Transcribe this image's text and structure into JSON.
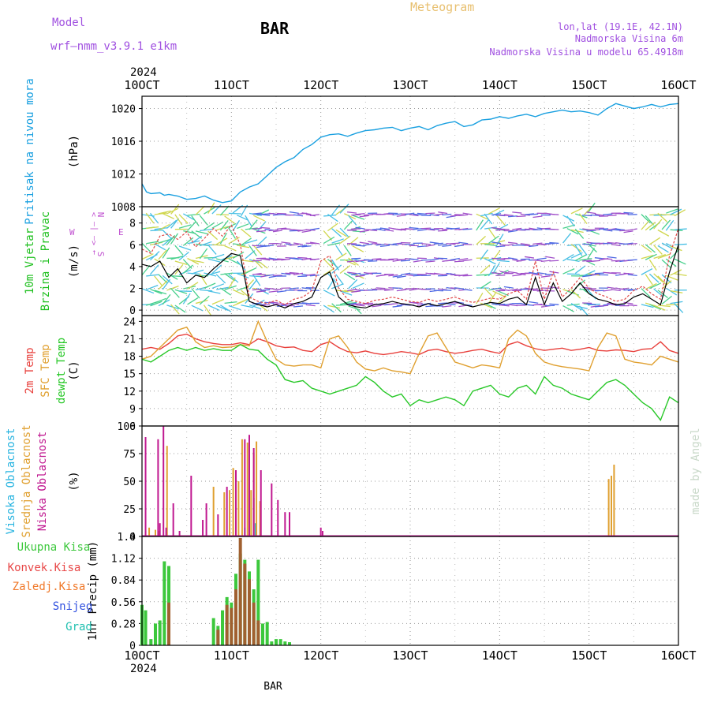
{
  "header": {
    "model_label": "Model",
    "model_name": "wrf–nmm_v3.9.1  e1km",
    "station": "BAR",
    "title": "Meteogram",
    "coords": "lon,lat (19.1E, 42.1N)",
    "elevation": "Nadmorska Visina 6m",
    "model_elevation": "Nadmorska Visina u modelu 65.4918m",
    "credit": "made by Angel",
    "footer": "BAR"
  },
  "colors": {
    "pressure": "#1aa0e0",
    "temp2m": "#e8403c",
    "sfc_temp": "#e0a030",
    "dewpoint": "#28c828",
    "high_cloud": "#28b4e0",
    "mid_cloud": "#e0a030",
    "low_cloud": "#c01890",
    "total_precip": "#3cc83c",
    "conv_precip": "#e84848",
    "freezing_precip": "#f07828",
    "snow": "#3050e0",
    "hail": "#20c0b0",
    "wind_label": "#20c020",
    "wind_dir": "#c050d0",
    "title": "#e8c070",
    "info": "#a050e0",
    "credit": "#c8d8c8"
  },
  "axes": {
    "year": "2024",
    "x_ticks": [
      "10OCT",
      "11OCT",
      "12OCT",
      "13OCT",
      "14OCT",
      "15OCT",
      "16OCT"
    ]
  },
  "chart_data": [
    {
      "id": "pressure",
      "type": "line",
      "ylabel_lines": [
        "Pritisak na nivou mora"
      ],
      "unit": "(hPa)",
      "ylim": [
        1008,
        1021.5
      ],
      "yticks": [
        1008,
        1012,
        1016,
        1020
      ],
      "grid": true,
      "x": [
        0,
        0.05,
        0.1,
        0.2,
        0.25,
        0.3,
        0.4,
        0.5,
        0.6,
        0.7,
        0.8,
        0.9,
        1.0,
        1.1,
        1.2,
        1.3,
        1.4,
        1.5,
        1.6,
        1.7,
        1.8,
        1.9,
        2.0,
        2.1,
        2.2,
        2.3,
        2.4,
        2.5,
        2.6,
        2.7,
        2.8,
        2.9,
        3.0,
        3.1,
        3.2,
        3.3,
        3.4,
        3.5,
        3.6,
        3.7,
        3.8,
        3.9,
        4.0,
        4.1,
        4.2,
        4.3,
        4.4,
        4.5,
        4.6,
        4.7,
        4.8,
        4.9,
        5.0,
        5.1,
        5.2,
        5.3,
        5.4,
        5.5,
        5.6,
        5.7,
        5.8,
        5.9,
        6.0
      ],
      "series": [
        {
          "values": [
            1010.8,
            1009.8,
            1009.6,
            1009.7,
            1009.4,
            1009.5,
            1009.3,
            1008.9,
            1009.0,
            1009.3,
            1008.8,
            1008.5,
            1008.7,
            1009.8,
            1010.4,
            1010.8,
            1011.8,
            1012.8,
            1013.5,
            1014.0,
            1015.0,
            1015.6,
            1016.5,
            1016.8,
            1016.9,
            1016.6,
            1017.0,
            1017.3,
            1017.4,
            1017.6,
            1017.7,
            1017.3,
            1017.6,
            1017.8,
            1017.4,
            1017.9,
            1018.2,
            1018.4,
            1017.8,
            1018.0,
            1018.6,
            1018.7,
            1019.0,
            1018.8,
            1019.1,
            1019.3,
            1019.0,
            1019.4,
            1019.6,
            1019.8,
            1019.6,
            1019.7,
            1019.5,
            1019.2,
            1020.0,
            1020.6,
            1020.3,
            1020.0,
            1020.2,
            1020.5,
            1020.2,
            1020.5,
            1020.6
          ]
        }
      ]
    },
    {
      "id": "wind",
      "type": "line",
      "ylabel_lines": [
        "10m Vjetar",
        "Brzina i Pravac"
      ],
      "unit": "(m/s)",
      "direction_key": [
        "N",
        "→ <– |– >",
        "W",
        "E",
        "S"
      ],
      "ylim": [
        -0.5,
        9.5
      ],
      "yticks": [
        0,
        2,
        4,
        6,
        8
      ],
      "grid": true,
      "x": [
        0,
        0.1,
        0.2,
        0.3,
        0.4,
        0.5,
        0.6,
        0.7,
        0.8,
        0.9,
        1.0,
        1.1,
        1.2,
        1.3,
        1.4,
        1.5,
        1.6,
        1.7,
        1.8,
        1.9,
        2.0,
        2.1,
        2.2,
        2.3,
        2.4,
        2.5,
        2.6,
        2.7,
        2.8,
        2.9,
        3.0,
        3.1,
        3.2,
        3.3,
        3.4,
        3.5,
        3.6,
        3.7,
        3.8,
        3.9,
        4.0,
        4.1,
        4.2,
        4.3,
        4.4,
        4.5,
        4.6,
        4.7,
        4.8,
        4.9,
        5.0,
        5.1,
        5.2,
        5.3,
        5.4,
        5.5,
        5.6,
        5.7,
        5.8,
        5.9,
        6.0
      ],
      "series": [
        {
          "values": [
            4.2,
            4.0,
            4.5,
            3.0,
            3.8,
            2.5,
            3.2,
            3.0,
            3.8,
            4.5,
            5.2,
            5.0,
            0.8,
            0.5,
            0.3,
            0.5,
            0.2,
            0.6,
            0.8,
            1.2,
            3.0,
            3.5,
            1.2,
            0.5,
            0.3,
            0.2,
            0.5,
            0.6,
            0.8,
            0.6,
            0.5,
            0.3,
            0.6,
            0.4,
            0.6,
            0.8,
            0.5,
            0.3,
            0.5,
            0.7,
            0.6,
            1.0,
            1.2,
            0.5,
            3.0,
            0.5,
            2.5,
            0.8,
            1.5,
            2.5,
            1.5,
            1.0,
            0.8,
            0.5,
            0.6,
            1.2,
            1.5,
            1.0,
            0.5,
            3.5,
            6.0
          ]
        },
        {
          "values": [
            5.6,
            5.2,
            6.8,
            7.0,
            6.5,
            7.2,
            5.8,
            6.6,
            7.5,
            6.8,
            7.8,
            6.0,
            1.2,
            0.8,
            0.6,
            0.9,
            0.5,
            1.0,
            1.2,
            1.8,
            4.5,
            5.0,
            2.0,
            1.0,
            0.8,
            0.6,
            0.9,
            1.0,
            1.2,
            1.0,
            0.8,
            0.7,
            1.0,
            0.8,
            1.0,
            1.2,
            0.9,
            0.7,
            0.9,
            1.1,
            1.0,
            1.5,
            1.8,
            1.0,
            4.5,
            1.0,
            3.5,
            1.2,
            2.0,
            3.0,
            2.0,
            1.5,
            1.2,
            0.8,
            1.0,
            1.8,
            2.2,
            1.5,
            1.0,
            5.0,
            7.5
          ]
        }
      ]
    },
    {
      "id": "temperature",
      "type": "line",
      "ylabel_lines": [
        "2m Temp",
        "SFC Temp",
        "dewpt Temp"
      ],
      "unit": "(C)",
      "ylim": [
        6,
        25
      ],
      "yticks": [
        6,
        9,
        12,
        15,
        18,
        21,
        24
      ],
      "grid": true,
      "x": [
        0,
        0.1,
        0.2,
        0.3,
        0.4,
        0.5,
        0.6,
        0.7,
        0.8,
        0.9,
        1.0,
        1.1,
        1.2,
        1.3,
        1.4,
        1.5,
        1.6,
        1.7,
        1.8,
        1.9,
        2.0,
        2.1,
        2.2,
        2.3,
        2.4,
        2.5,
        2.6,
        2.7,
        2.8,
        2.9,
        3.0,
        3.1,
        3.2,
        3.3,
        3.4,
        3.5,
        3.6,
        3.7,
        3.8,
        3.9,
        4.0,
        4.1,
        4.2,
        4.3,
        4.4,
        4.5,
        4.6,
        4.7,
        4.8,
        4.9,
        5.0,
        5.1,
        5.2,
        5.3,
        5.4,
        5.5,
        5.6,
        5.7,
        5.8,
        5.9,
        6.0
      ],
      "series": [
        {
          "values": [
            19.2,
            19.5,
            19.2,
            20.2,
            21.5,
            21.8,
            21.0,
            20.5,
            20.2,
            20.0,
            20.0,
            20.3,
            20.0,
            21.0,
            20.5,
            19.8,
            19.5,
            19.6,
            19.0,
            18.8,
            20.0,
            20.5,
            19.5,
            18.8,
            18.6,
            18.9,
            18.5,
            18.3,
            18.5,
            18.8,
            18.6,
            18.3,
            19.0,
            19.2,
            18.8,
            18.5,
            18.7,
            19.0,
            19.2,
            18.8,
            18.5,
            20.0,
            20.5,
            19.8,
            19.3,
            19.0,
            19.2,
            19.4,
            19.0,
            19.2,
            19.5,
            19.0,
            18.9,
            19.1,
            19.0,
            18.8,
            19.2,
            19.3,
            20.5,
            19.0,
            18.5
          ]
        },
        {
          "values": [
            17.5,
            18.0,
            19.5,
            21.0,
            22.5,
            23.0,
            20.5,
            19.5,
            19.8,
            19.5,
            19.6,
            20.0,
            19.8,
            24.0,
            20.5,
            17.5,
            16.5,
            16.3,
            16.5,
            16.5,
            16.0,
            21.0,
            21.5,
            19.5,
            17.0,
            15.8,
            15.5,
            16.0,
            15.5,
            15.3,
            15.0,
            18.5,
            21.5,
            22.0,
            19.5,
            17.0,
            16.5,
            16.0,
            16.5,
            16.3,
            16.0,
            21.0,
            22.5,
            21.5,
            18.5,
            17.0,
            16.5,
            16.2,
            16.0,
            15.8,
            15.5,
            19.5,
            22.0,
            21.5,
            17.5,
            17.0,
            16.8,
            16.5,
            18.0,
            17.5,
            17.0
          ]
        },
        {
          "values": [
            17.5,
            17.0,
            18.0,
            19.0,
            19.5,
            19.0,
            19.5,
            19.0,
            19.3,
            19.0,
            19.0,
            20.0,
            19.2,
            19.0,
            17.5,
            16.5,
            14.0,
            13.5,
            13.8,
            12.5,
            12.0,
            11.5,
            12.0,
            12.5,
            13.0,
            14.5,
            13.5,
            12.0,
            11.0,
            11.5,
            9.5,
            10.5,
            10.0,
            10.5,
            11.0,
            10.5,
            9.5,
            12.0,
            12.5,
            13.0,
            11.5,
            11.0,
            12.5,
            13.0,
            11.5,
            14.5,
            13.0,
            12.5,
            11.5,
            11.0,
            10.5,
            12.0,
            13.5,
            14.0,
            13.0,
            11.5,
            10.0,
            9.0,
            7.0,
            11.0,
            10.0
          ]
        }
      ]
    },
    {
      "id": "clouds",
      "type": "bar",
      "ylabel_lines": [
        "Visoka Oblacnost",
        "Srednja Oblacnost",
        "Niska Oblacnost"
      ],
      "unit": "(%)",
      "ylim": [
        0,
        100
      ],
      "yticks": [
        0,
        25,
        50,
        75,
        100
      ],
      "grid": true,
      "series": [
        {
          "name": "Visoka Oblacnost",
          "x": [
            1.15,
            1.25,
            1.27
          ],
          "values": [
            8,
            35,
            12
          ]
        },
        {
          "name": "Srednja Oblacnost",
          "x": [
            0.04,
            0.08,
            0.15,
            0.19,
            0.28,
            0.8,
            0.92,
            0.98,
            1.02,
            1.08,
            1.12,
            1.18,
            1.22,
            1.25,
            1.28,
            1.32,
            5.22,
            5.25,
            5.28
          ],
          "values": [
            5,
            8,
            6,
            5,
            82,
            45,
            40,
            42,
            62,
            50,
            88,
            85,
            42,
            76,
            86,
            32,
            52,
            55,
            65
          ]
        },
        {
          "name": "Niska Oblacnost",
          "x": [
            0.04,
            0.18,
            0.2,
            0.24,
            0.27,
            0.35,
            0.42,
            0.55,
            0.68,
            0.72,
            0.85,
            0.95,
            1.05,
            1.15,
            1.2,
            1.25,
            1.33,
            1.45,
            1.52,
            1.6,
            1.65,
            2.0,
            2.02
          ],
          "values": [
            90,
            88,
            12,
            100,
            8,
            30,
            5,
            55,
            15,
            30,
            20,
            45,
            60,
            88,
            92,
            80,
            60,
            48,
            33,
            22,
            22,
            8,
            5
          ]
        }
      ]
    },
    {
      "id": "precip",
      "type": "bar",
      "legend": [
        "Ukupna Kisa",
        "Konvek.Kisa",
        "Zaledj.Kisa",
        "Snijeg",
        "Grad"
      ],
      "ylabel_lines": [
        "1hr Precip (mm)"
      ],
      "ylim": [
        0,
        1.4
      ],
      "yticks": [
        0,
        0.28,
        0.56,
        0.84,
        1.12,
        1.4
      ],
      "grid": true,
      "series": [
        {
          "name": "Ukupna Kisa",
          "x": [
            0.0,
            0.04,
            0.1,
            0.15,
            0.2,
            0.25,
            0.3,
            0.8,
            0.85,
            0.9,
            0.95,
            1.0,
            1.05,
            1.1,
            1.15,
            1.2,
            1.25,
            1.3,
            1.35,
            1.4,
            1.45,
            1.5,
            1.55,
            1.6,
            1.65
          ],
          "values": [
            0.52,
            0.45,
            0.08,
            0.28,
            0.32,
            1.08,
            1.02,
            0.35,
            0.25,
            0.45,
            0.62,
            0.55,
            0.92,
            1.18,
            1.1,
            0.95,
            0.72,
            1.1,
            0.28,
            0.3,
            0.05,
            0.08,
            0.08,
            0.05,
            0.04
          ]
        },
        {
          "name": "Konvek.Kisa",
          "x": [
            0.3,
            0.85,
            0.95,
            1.0,
            1.05,
            1.1,
            1.15,
            1.2,
            1.25,
            1.3
          ],
          "values": [
            0.55,
            0.2,
            0.52,
            0.48,
            0.72,
            1.38,
            1.05,
            0.85,
            0.55,
            0.32
          ]
        }
      ]
    }
  ]
}
